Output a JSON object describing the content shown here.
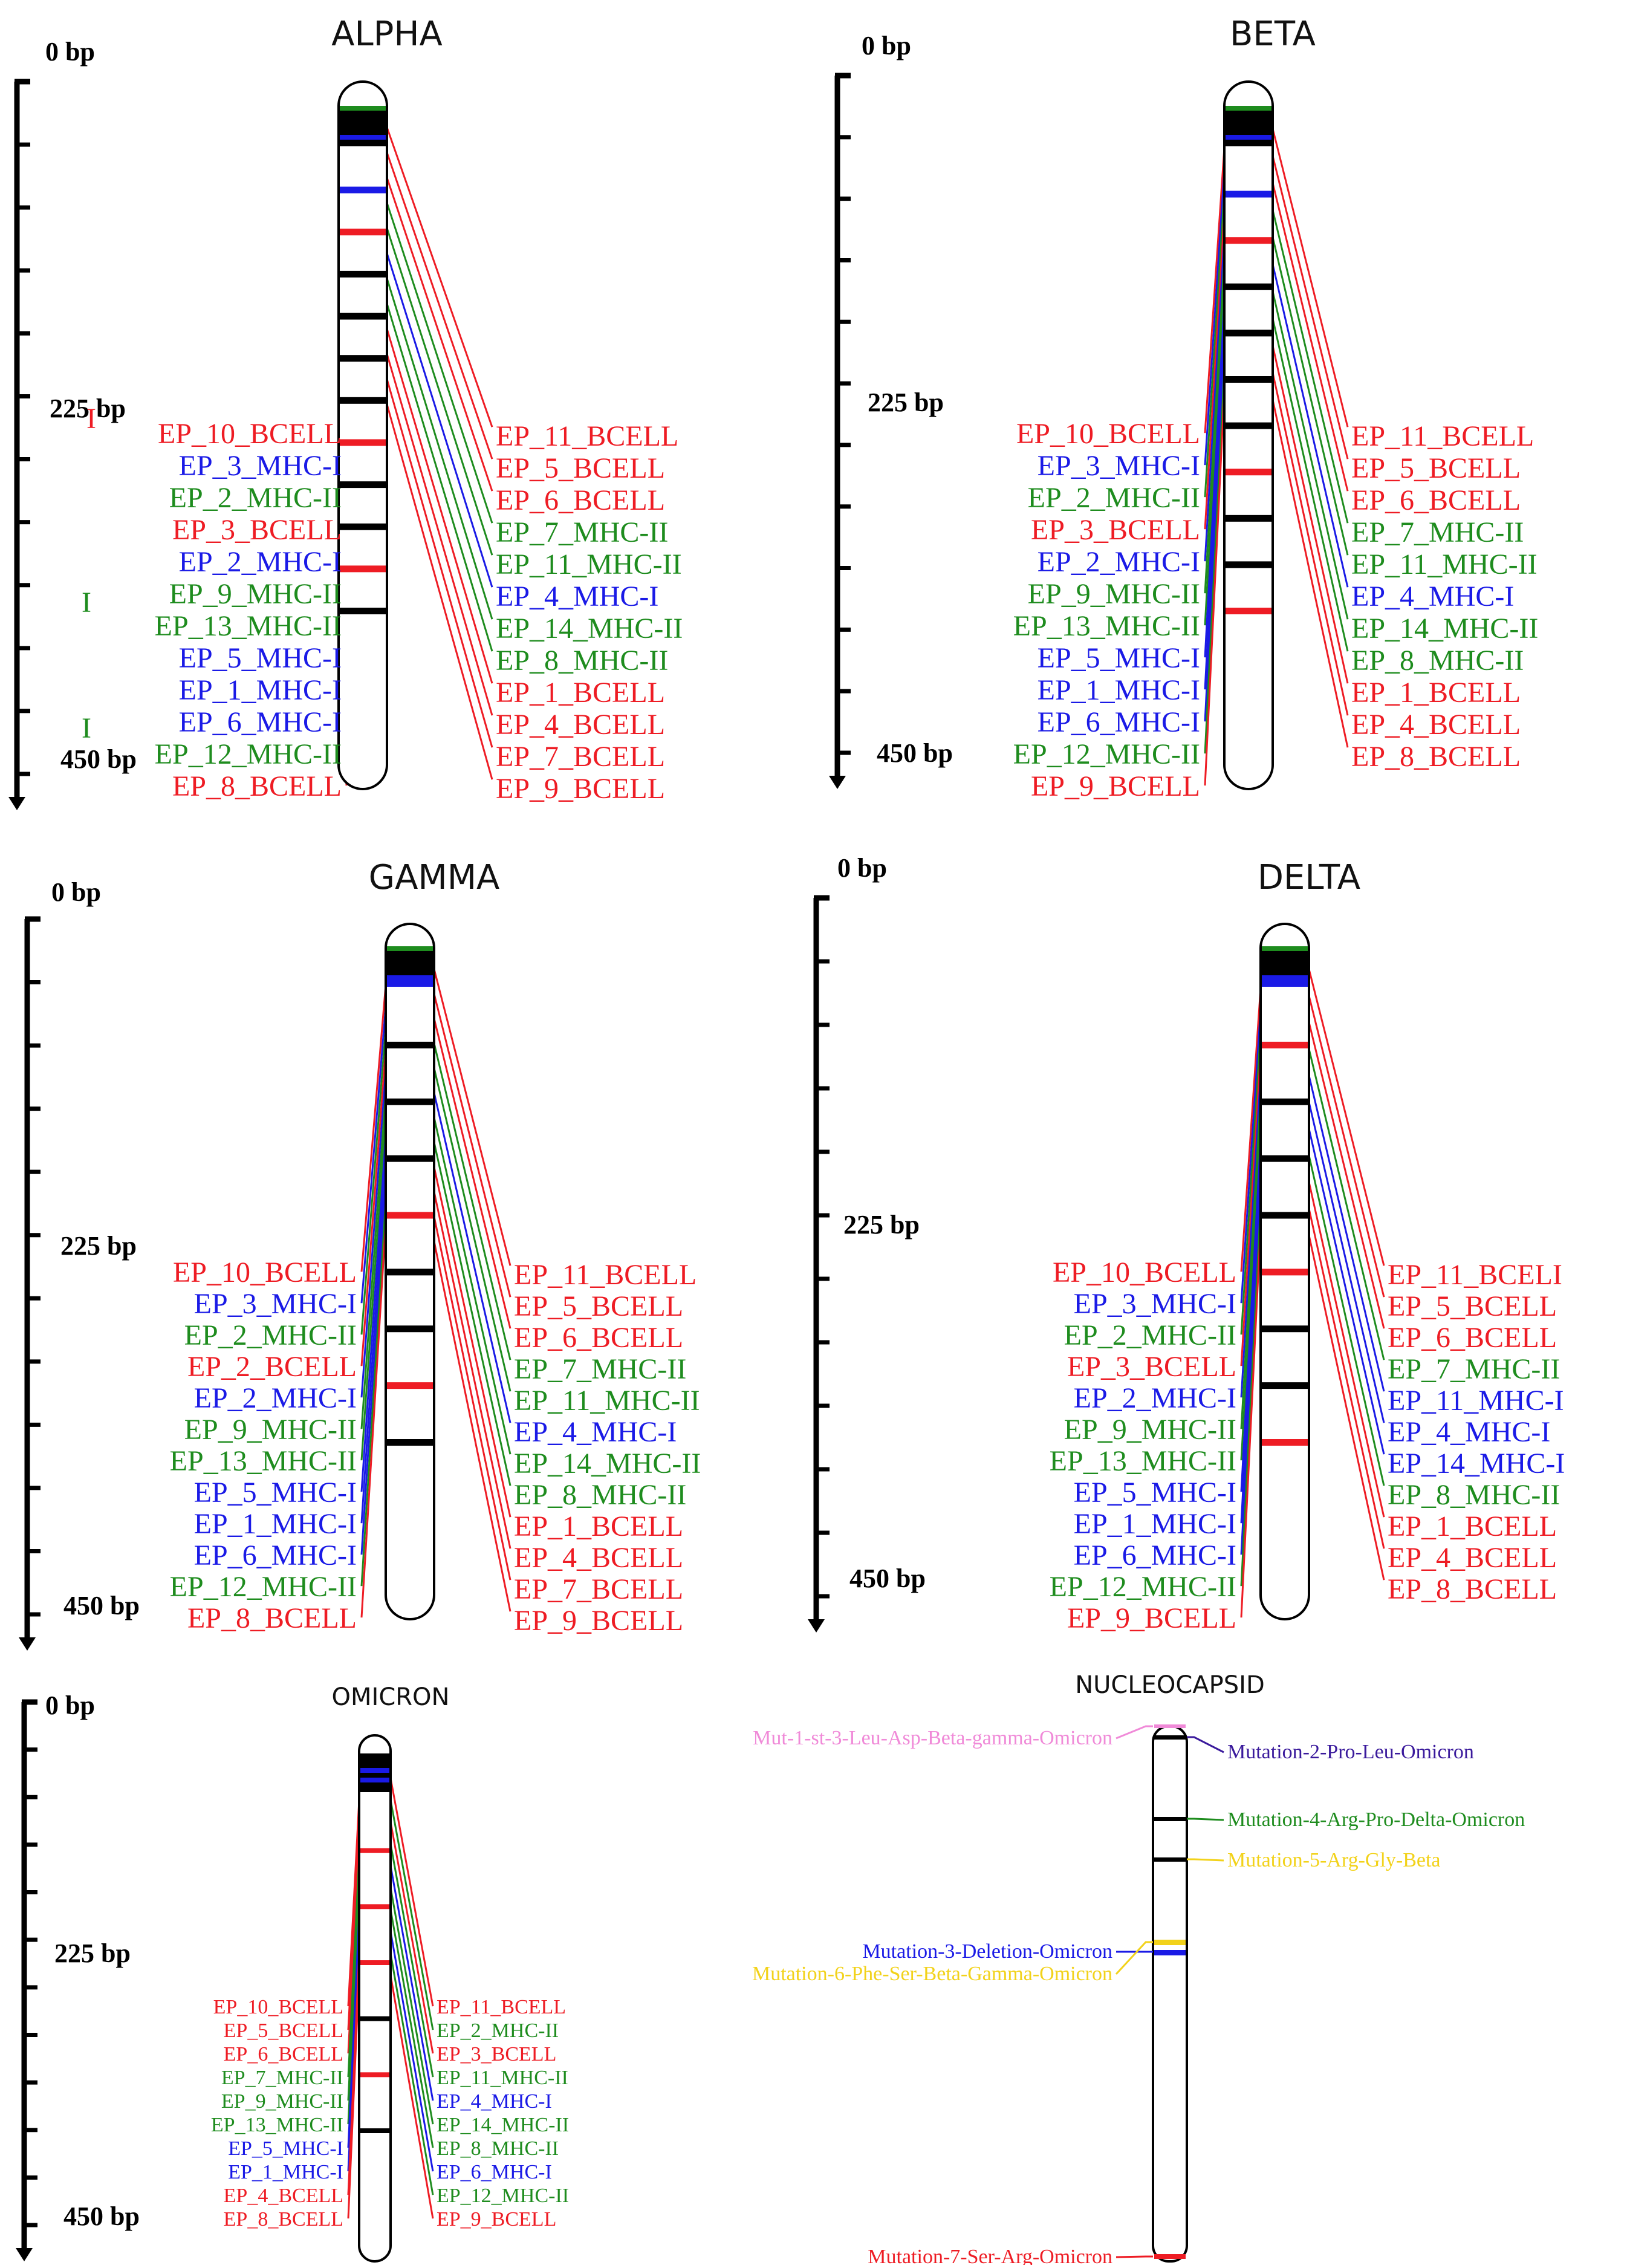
{
  "colors": {
    "BCELL": "#ee1c24",
    "MHC-I": "#1a1ae6",
    "MHC-II": "#1e8c1e",
    "black": "#000000",
    "pink": "#f08ad8",
    "purple": "#3a1a9c",
    "yellow": "#f2d21a"
  },
  "panels": [
    {
      "id": "alpha",
      "title": "ALPHA",
      "axis": {
        "start": "0 bp",
        "mid": "225 bp",
        "end": "450 bp"
      },
      "bands": [
        "green",
        "black",
        "black",
        "black",
        "black",
        "black",
        "blue",
        "black",
        "blue",
        "red",
        "black",
        "black",
        "black",
        "black",
        "red",
        "black",
        "black",
        "red",
        "black"
      ],
      "left": [
        "EP_10_BCELL",
        "EP_3_MHC-I",
        "EP_2_MHC-II",
        "EP_3_BCELL",
        "EP_2_MHC-I",
        "EP_9_MHC-II",
        "EP_13_MHC-II",
        "EP_5_MHC-I",
        "EP_1_MHC-I",
        "EP_6_MHC-I",
        "EP_12_MHC-II",
        "EP_8_BCELL"
      ],
      "right": [
        "EP_11_BCELL",
        "EP_5_BCELL",
        "EP_6_BCELL",
        "EP_7_MHC-II",
        "EP_11_MHC-II",
        "EP_4_MHC-I",
        "EP_14_MHC-II",
        "EP_8_MHC-II",
        "EP_1_BCELL",
        "EP_4_BCELL",
        "EP_7_BCELL",
        "EP_9_BCELL"
      ],
      "marks": [
        "I",
        "I",
        "I"
      ]
    },
    {
      "id": "beta",
      "title": "BETA",
      "axis": {
        "start": "0 bp",
        "mid": "225 bp",
        "end": "450 bp"
      },
      "bands": [
        "green",
        "black",
        "black",
        "black",
        "black",
        "black",
        "blue",
        "black",
        "blue",
        "red",
        "black",
        "black",
        "black",
        "black",
        "red",
        "black",
        "black",
        "red"
      ],
      "left": [
        "EP_10_BCELL",
        "EP_3_MHC-I",
        "EP_2_MHC-II",
        "EP_3_BCELL",
        "EP_2_MHC-I",
        "EP_9_MHC-II",
        "EP_13_MHC-II",
        "EP_5_MHC-I",
        "EP_1_MHC-I",
        "EP_6_MHC-I",
        "EP_12_MHC-II",
        "EP_9_BCELL"
      ],
      "right": [
        "EP_11_BCELL",
        "EP_5_BCELL",
        "EP_6_BCELL",
        "EP_7_MHC-II",
        "EP_11_MHC-II",
        "EP_4_MHC-I",
        "EP_14_MHC-II",
        "EP_8_MHC-II",
        "EP_1_BCELL",
        "EP_4_BCELL",
        "EP_8_BCELL"
      ]
    },
    {
      "id": "gamma",
      "title": "GAMMA",
      "axis": {
        "start": "0 bp",
        "mid": "225 bp",
        "end": "450 bp"
      },
      "bands": [
        "green",
        "black",
        "black",
        "black",
        "black",
        "black",
        "blue",
        "blue",
        "black",
        "black",
        "black",
        "red",
        "black",
        "black",
        "red",
        "black"
      ],
      "left": [
        "EP_10_BCELL",
        "EP_3_MHC-I",
        "EP_2_MHC-II",
        "EP_2_BCELL",
        "EP_2_MHC-I",
        "EP_9_MHC-II",
        "EP_13_MHC-II",
        "EP_5_MHC-I",
        "EP_1_MHC-I",
        "EP_6_MHC-I",
        "EP_12_MHC-II",
        "EP_8_BCELL"
      ],
      "right": [
        "EP_11_BCELL",
        "EP_5_BCELL",
        "EP_6_BCELL",
        "EP_7_MHC-II",
        "EP_11_MHC-II",
        "EP_4_MHC-I",
        "EP_14_MHC-II",
        "EP_8_MHC-II",
        "EP_1_BCELL",
        "EP_4_BCELL",
        "EP_7_BCELL",
        "EP_9_BCELL"
      ]
    },
    {
      "id": "delta",
      "title": "DELTA",
      "axis": {
        "start": "0 bp",
        "mid": "225 bp",
        "end": "450 bp"
      },
      "bands": [
        "green",
        "black",
        "black",
        "black",
        "black",
        "black",
        "blue",
        "blue",
        "red",
        "black",
        "black",
        "black",
        "red",
        "black",
        "black",
        "red"
      ],
      "left": [
        "EP_10_BCELL",
        "EP_3_MHC-I",
        "EP_2_MHC-II",
        "EP_3_BCELL",
        "EP_2_MHC-I",
        "EP_9_MHC-II",
        "EP_13_MHC-II",
        "EP_5_MHC-I",
        "EP_1_MHC-I",
        "EP_6_MHC-I",
        "EP_12_MHC-II",
        "EP_9_BCELL"
      ],
      "right": [
        "EP_11_BCELI",
        "EP_5_BCELL",
        "EP_6_BCELL",
        "EP_7_MHC-II",
        "EP_11_MHC-I",
        "EP_4_MHC-I",
        "EP_14_MHC-I",
        "EP_8_MHC-II",
        "EP_1_BCELL",
        "EP_4_BCELL",
        "EP_8_BCELL"
      ]
    },
    {
      "id": "omicron",
      "title": "OMICRON",
      "axis": {
        "start": "0 bp",
        "mid": "225 bp",
        "end": "450 bp"
      },
      "bands": [
        "black",
        "black",
        "black",
        "blue",
        "black",
        "blue",
        "black",
        "black",
        "red",
        "red",
        "red",
        "black",
        "red",
        "black"
      ],
      "left": [
        "EP_10_BCELL",
        "EP_5_BCELL",
        "EP_6_BCELL",
        "EP_7_MHC-II",
        "EP_9_MHC-II",
        "EP_13_MHC-II",
        "EP_5_MHC-I",
        "EP_1_MHC-I",
        "EP_4_BCELL",
        "EP_8_BCELL"
      ],
      "right": [
        "EP_11_BCELL",
        "EP_2_MHC-II",
        "EP_3_BCELL",
        "EP_11_MHC-II",
        "EP_4_MHC-I",
        "EP_14_MHC-II",
        "EP_8_MHC-II",
        "EP_6_MHC-I",
        "EP_12_MHC-II",
        "EP_9_BCELL"
      ]
    }
  ],
  "nucleocapsid": {
    "title": "NUCLEOCAPSID",
    "mutations": [
      {
        "label": "Mut-1-st-3-Leu-Asp-Beta-gamma-Omicron",
        "color": "pink"
      },
      {
        "label": "Mutation-2-Pro-Leu-Omicron",
        "color": "purple"
      },
      {
        "label": "Mutation-4-Arg-Pro-Delta-Omicron",
        "color": "MHC-II"
      },
      {
        "label": "Mutation-5-Arg-Gly-Beta",
        "color": "yellow"
      },
      {
        "label": "Mutation-3-Deletion-Omicron",
        "color": "MHC-I"
      },
      {
        "label": "Mutation-6-Phe-Ser-Beta-Gamma-Omicron",
        "color": "yellow"
      },
      {
        "label": "Mutation-7-Ser-Arg-Omicron",
        "color": "BCELL"
      }
    ]
  }
}
